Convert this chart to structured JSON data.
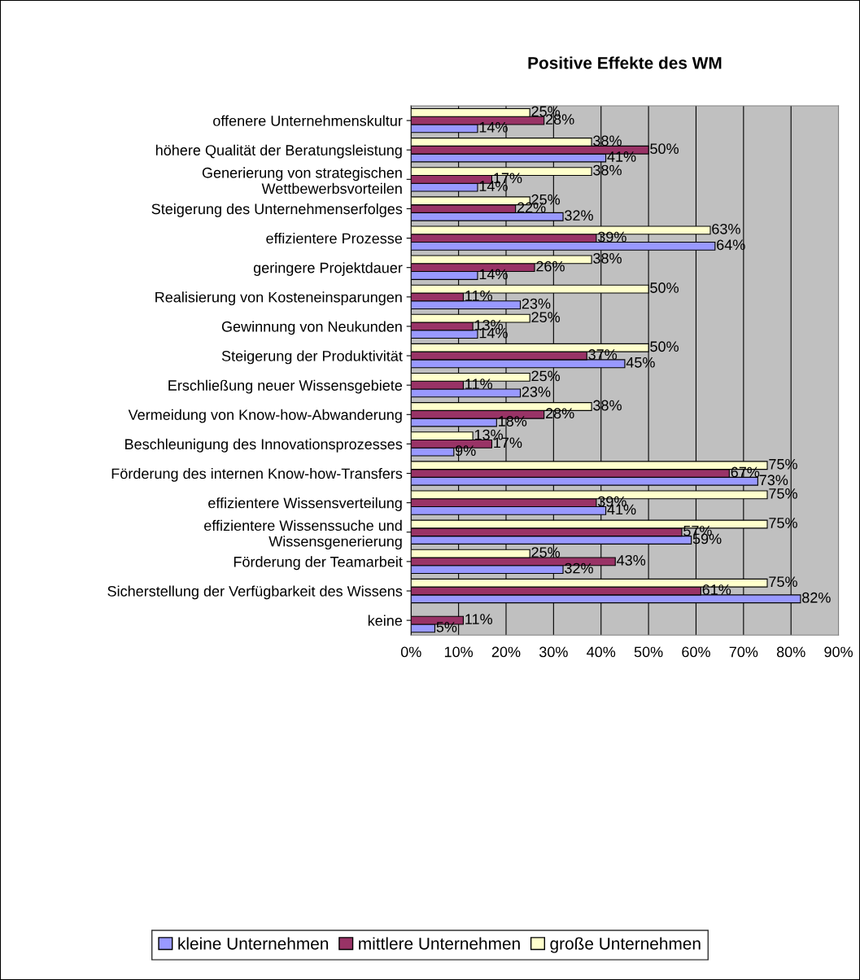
{
  "chart_data": {
    "type": "bar",
    "orientation": "horizontal",
    "title": "Positive Effekte des WM",
    "categories": [
      "offenere Unternehmenskultur",
      "höhere Qualität der Beratungsleistung",
      "Generierung von strategischen\nWettbewerbsvorteilen",
      "Steigerung des Unternehmenserfolges",
      "effizientere Prozesse",
      "geringere Projektdauer",
      "Realisierung von Kosteneinsparungen",
      "Gewinnung von Neukunden",
      "Steigerung der Produktivität",
      "Erschließung neuer Wissensgebiete",
      "Vermeidung von Know-how-Abwanderung",
      "Beschleunigung des Innovationsprozesses",
      "Förderung des internen Know-how-Transfers",
      "effizientere Wissensverteilung",
      "effizientere Wissenssuche und\nWissensgenerierung",
      "Förderung der Teamarbeit",
      "Sicherstellung der Verfügbarkeit des Wissens",
      "keine"
    ],
    "series": [
      {
        "name": "kleine Unternehmen",
        "color": "#9999ff",
        "values": [
          14,
          41,
          14,
          32,
          64,
          14,
          23,
          14,
          45,
          23,
          18,
          9,
          73,
          41,
          59,
          32,
          82,
          5
        ],
        "value_labels": [
          "14%",
          "41%",
          "14%",
          "32%",
          "64%",
          "14%",
          "23%",
          "14%",
          "45%",
          "23%",
          "18%",
          "9%",
          "73%",
          "41%",
          "59%",
          "32%",
          "82%",
          "5%"
        ]
      },
      {
        "name": "mittlere Unternehmen",
        "color": "#993366",
        "values": [
          28,
          50,
          17,
          22,
          39,
          26,
          11,
          13,
          37,
          11,
          28,
          17,
          67,
          39,
          57,
          43,
          61,
          11
        ],
        "value_labels": [
          "28%",
          "50%",
          "17%",
          "22%",
          "39%",
          "26%",
          "11%",
          "13%",
          "37%",
          "11%",
          "28%",
          "17%",
          "67%",
          "39%",
          "57%",
          "43%",
          "61%",
          "11%"
        ]
      },
      {
        "name": "große Unternehmen",
        "color": "#ffffcc",
        "values": [
          25,
          38,
          38,
          25,
          63,
          38,
          50,
          25,
          50,
          25,
          38,
          13,
          75,
          75,
          75,
          25,
          75,
          null
        ],
        "value_labels": [
          "25%",
          "38%",
          "38%",
          "25%",
          "63%",
          "38%",
          "50%",
          "25%",
          "50%",
          "25%",
          "38%",
          "13%",
          "75%",
          "75%",
          "75%",
          "25%",
          "75%",
          null
        ]
      }
    ],
    "xlim": [
      0,
      90
    ],
    "xticks": [
      {
        "value": 0,
        "label": "0%"
      },
      {
        "value": 10,
        "label": "10%"
      },
      {
        "value": 20,
        "label": "20%"
      },
      {
        "value": 30,
        "label": "30%"
      },
      {
        "value": 40,
        "label": "40%"
      },
      {
        "value": 50,
        "label": "50%"
      },
      {
        "value": 60,
        "label": "60%"
      },
      {
        "value": 70,
        "label": "70%"
      },
      {
        "value": 80,
        "label": "80%"
      },
      {
        "value": 90,
        "label": "90%"
      }
    ],
    "grid": "x",
    "legend": "bottom"
  }
}
